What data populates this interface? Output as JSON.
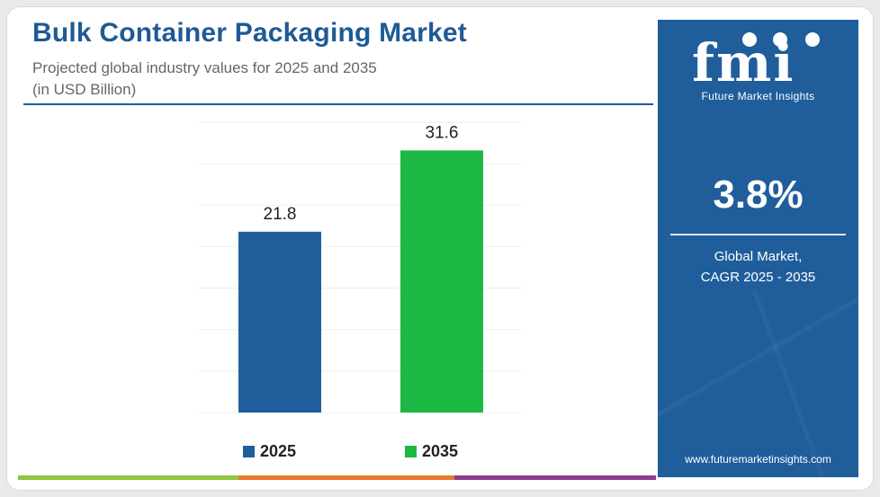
{
  "header": {
    "title": "Bulk Container Packaging Market",
    "subtitle_line1": "Projected global industry values for 2025 and 2035",
    "subtitle_line2": "(in USD Billion)"
  },
  "sidebar": {
    "logo_text": "fmi",
    "logo_name": "Future Market Insights",
    "cagr_value": "3.8%",
    "cagr_label_line1": "Global Market,",
    "cagr_label_line2": "CAGR 2025 - 2035",
    "website": "www.futuremarketinsights.com",
    "background_color": "#1f5e9b"
  },
  "chart_data": {
    "type": "bar",
    "title": "Bulk Container Packaging Market",
    "subtitle": "Projected global industry values for 2025 and 2035 (in USD Billion)",
    "categories": [
      "2025",
      "2035"
    ],
    "values": [
      21.8,
      31.6
    ],
    "value_labels": [
      "21.8",
      "31.6"
    ],
    "colors": [
      "#1f5e9b",
      "#1cb843"
    ],
    "legend": [
      "2025",
      "2035"
    ],
    "legend_position": "bottom",
    "xlabel": "",
    "ylabel": "",
    "ylim": [
      0,
      35
    ],
    "grid": true
  },
  "footer": {
    "bar_colors": [
      "#8dc63f",
      "#e8792f",
      "#8e3b8e"
    ]
  }
}
